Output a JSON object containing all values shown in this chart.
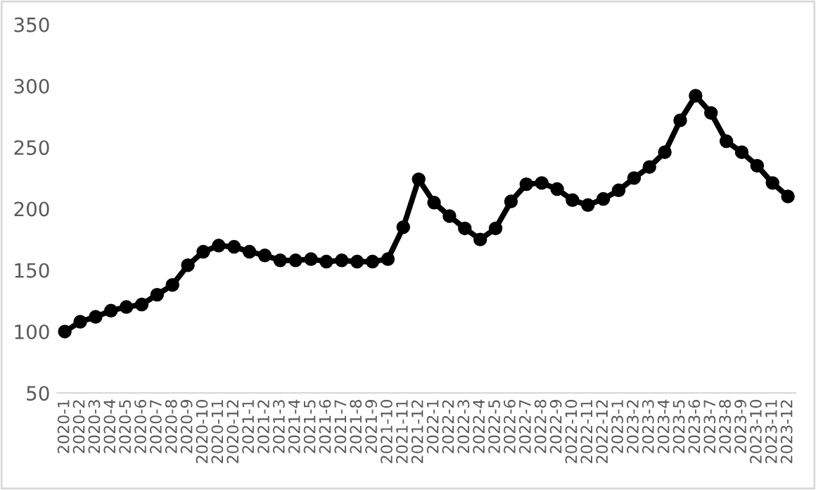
{
  "chart_data": {
    "type": "line",
    "categories": [
      "2020-1",
      "2020-2",
      "2020-3",
      "2020-4",
      "2020-5",
      "2020-6",
      "2020-7",
      "2020-8",
      "2020-9",
      "2020-10",
      "2020-11",
      "2020-12",
      "2021-1",
      "2021-2",
      "2021-3",
      "2021-4",
      "2021-5",
      "2021-6",
      "2021-7",
      "2021-8",
      "2021-9",
      "2021-10",
      "2021-11",
      "2021-12",
      "2022-1",
      "2022-2",
      "2022-3",
      "2022-4",
      "2022-5",
      "2022-6",
      "2022-7",
      "2022-8",
      "2022-9",
      "2022-10",
      "2022-11",
      "2022-12",
      "2023-1",
      "2023-2",
      "2023-3",
      "2023-4",
      "2023-5",
      "2023-6",
      "2023-7",
      "2023-8",
      "2023-9",
      "2023-10",
      "2023-11",
      "2023-12"
    ],
    "series": [
      {
        "color": "#000000",
        "values": [
          100,
          108,
          112,
          117,
          120,
          122,
          130,
          138,
          154,
          165,
          170,
          169,
          165,
          162,
          158,
          158,
          159,
          157,
          158,
          157,
          157,
          159,
          185,
          224,
          205,
          194,
          184,
          175,
          184,
          206,
          220,
          221,
          216,
          207,
          203,
          208,
          215,
          225,
          234,
          246,
          272,
          292,
          278,
          255,
          246,
          235,
          221,
          210
        ]
      }
    ],
    "ylim": [
      50,
      350
    ],
    "yticks": [
      50,
      100,
      150,
      200,
      250,
      300,
      350
    ],
    "grid": false,
    "legend": false,
    "marker": "circle",
    "line_style": "solid"
  }
}
